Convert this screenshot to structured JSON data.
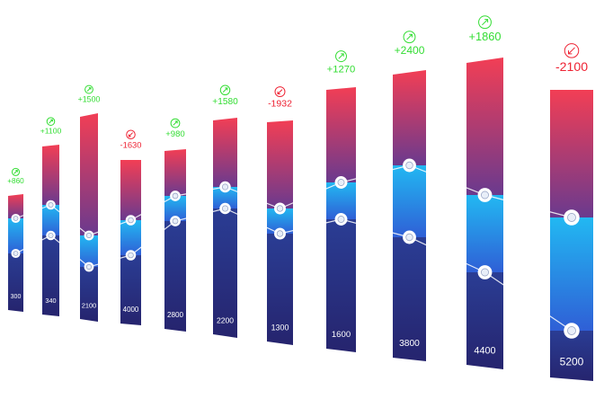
{
  "chart_data": {
    "type": "bar",
    "values": [
      300,
      340,
      2100,
      4000,
      2800,
      2200,
      1300,
      1600,
      3800,
      4400,
      5200
    ],
    "changes": {
      "values": [
        860,
        1100,
        1500,
        -1630,
        980,
        1580,
        -1932,
        1270,
        2400,
        1860,
        -2100
      ],
      "value_labels": [
        "+860",
        "+1100",
        "+1500",
        "-1630",
        "+980",
        "+1580",
        "-1932",
        "+1270",
        "+2400",
        "+1860",
        "-2100"
      ]
    },
    "colors": {
      "up": "#33dd33",
      "down": "#ee2233"
    }
  }
}
